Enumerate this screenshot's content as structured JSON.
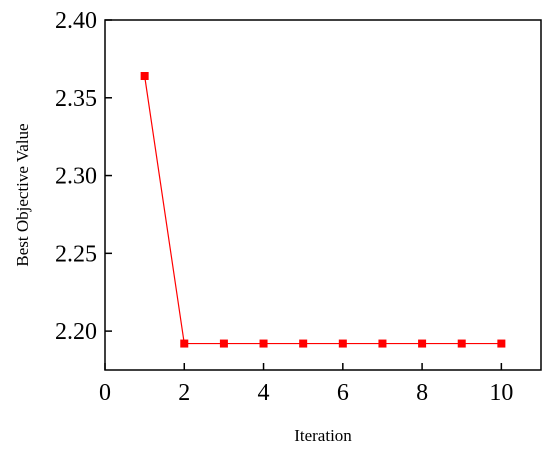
{
  "chart_data": {
    "type": "line",
    "title": "",
    "xlabel": "Iteration",
    "ylabel": "Best Objective Value",
    "xlim": [
      0,
      11
    ],
    "ylim": [
      2.175,
      2.4
    ],
    "xticks": [
      0,
      2,
      4,
      6,
      8,
      10
    ],
    "xtick_labels": [
      "0",
      "2",
      "4",
      "6",
      "8",
      "10"
    ],
    "yticks": [
      2.2,
      2.25,
      2.3,
      2.35,
      2.4
    ],
    "ytick_labels": [
      "2.20",
      "2.25",
      "2.30",
      "2.35",
      "2.40"
    ],
    "grid": false,
    "series": [
      {
        "marker": "square",
        "color": "#ff0000",
        "x": [
          1,
          2,
          3,
          4,
          5,
          6,
          7,
          8,
          9,
          10
        ],
        "y": [
          2.364,
          2.192,
          2.192,
          2.192,
          2.192,
          2.192,
          2.192,
          2.192,
          2.192,
          2.192
        ]
      }
    ]
  }
}
